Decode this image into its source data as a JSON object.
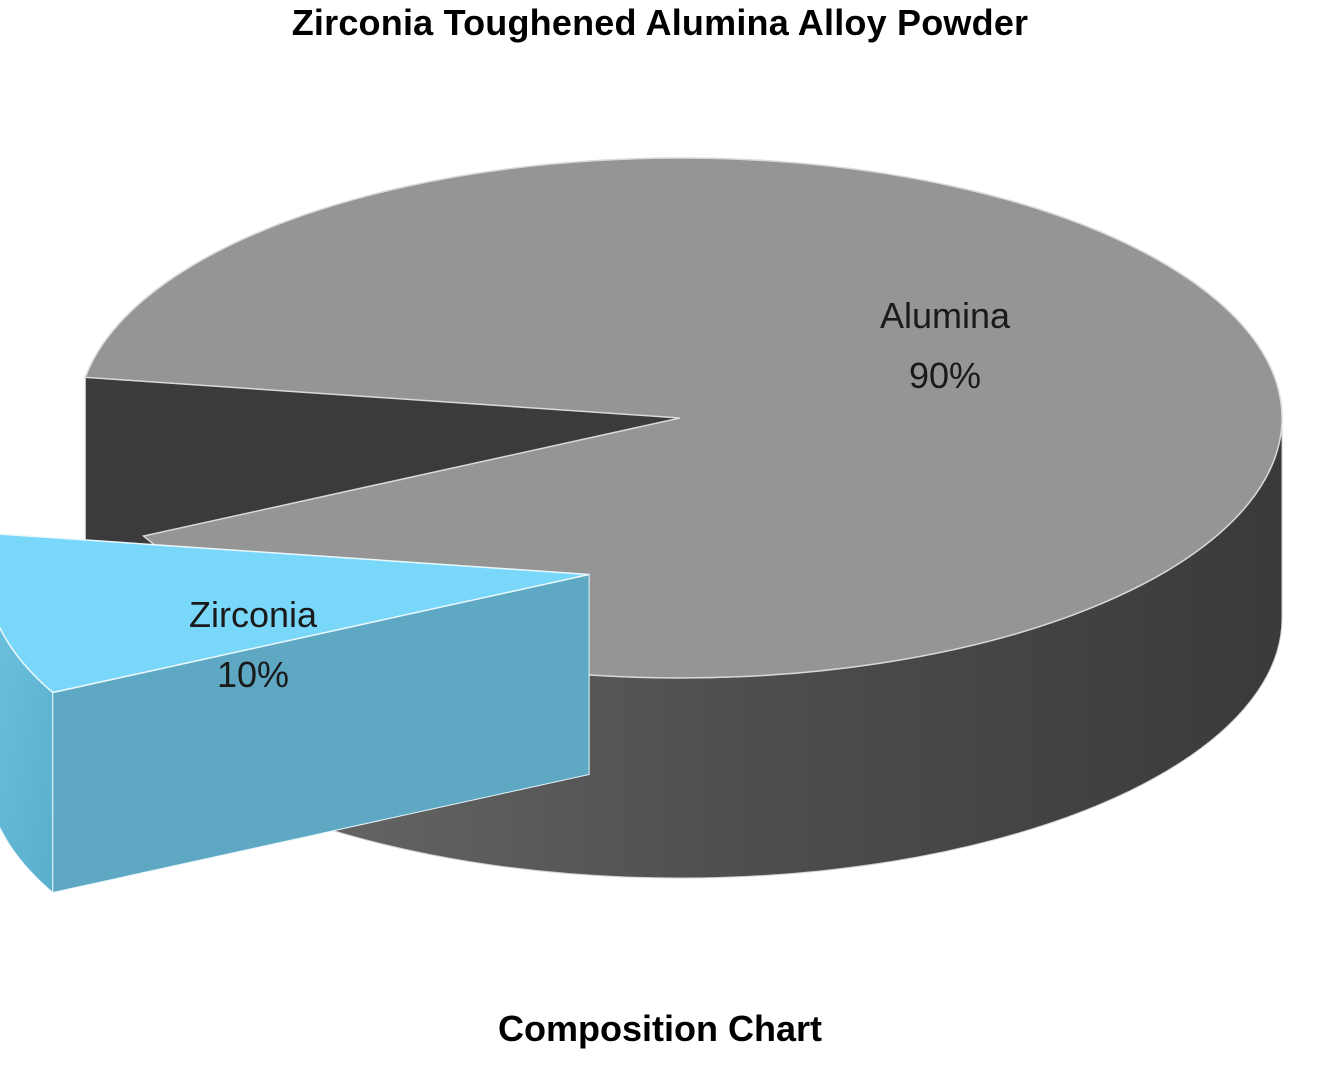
{
  "chart_data": {
    "type": "pie",
    "title": "Zirconia Toughened Alumina Alloy Powder",
    "subtitle": "Composition Chart",
    "slices": [
      {
        "label": "Alumina",
        "value": 90,
        "value_label": "90%",
        "color": "#959595",
        "exploded": false
      },
      {
        "label": "Zirconia",
        "value": 10,
        "value_label": "10%",
        "color": "#79D8F9",
        "exploded": true
      }
    ],
    "style": "3d-exploded"
  }
}
